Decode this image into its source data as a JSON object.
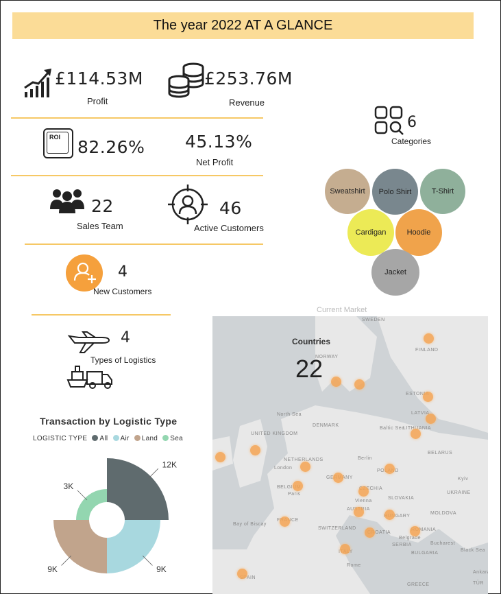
{
  "banner": {
    "title": "The year 2022 AT A GLANCE"
  },
  "kpis": {
    "profit": {
      "value": "£114.53M",
      "label": "Profit"
    },
    "revenue": {
      "value": "£253.76M",
      "label": "Revenue"
    },
    "roi": {
      "value": "82.26%",
      "icon_text": "ROI"
    },
    "net_profit": {
      "value": "45.13%",
      "label": "Net Profit"
    },
    "sales_team": {
      "value": "22",
      "label": "Sales Team"
    },
    "active_customers": {
      "value": "46",
      "label": "Active Customers"
    },
    "new_customers": {
      "value": "4",
      "label": "New Customers"
    },
    "logistics": {
      "value": "4",
      "label": "Types of Logistics"
    },
    "categories": {
      "value": "6",
      "label": "Categories"
    }
  },
  "category_bubbles": [
    {
      "label": "Sweatshirt",
      "color": "#c5ad90"
    },
    {
      "label": "Polo Shirt",
      "color": "#79878e"
    },
    {
      "label": "T-Shirt",
      "color": "#8fb09b"
    },
    {
      "label": "Cardigan",
      "color": "#ecea56"
    },
    {
      "label": "Hoodie",
      "color": "#f0a34b"
    },
    {
      "label": "Jacket",
      "color": "#a6a6a6"
    }
  ],
  "chart_data": {
    "type": "pie",
    "title": "Transaction by Logistic Type",
    "legend_title": "LOGISTIC TYPE",
    "legend_position": "top",
    "categories": [
      "All",
      "Air",
      "Land",
      "Sea"
    ],
    "values": [
      12000,
      9000,
      9000,
      3000
    ],
    "data_labels": [
      "12K",
      "9K",
      "9K",
      "3K"
    ],
    "colors": [
      "#5f6b6e",
      "#a8d8df",
      "#c1a48c",
      "#93d6b0"
    ]
  },
  "map": {
    "title": "Current Market",
    "countries_label": "Countries",
    "countries_value": "22",
    "place_labels": [
      "SWEDEN",
      "FINLAND",
      "NORWAY",
      "ESTONIA",
      "North Sea",
      "DENMARK",
      "Baltic Sea",
      "LATVIA",
      "LITHUANIA",
      "UNITED KINGDOM",
      "BELARUS",
      "NETHERLANDS",
      "Berlin",
      "London",
      "GERMANY",
      "POLAND",
      "BELGIUM",
      "Paris",
      "CZECHIA",
      "UKRAINE",
      "Kyiv",
      "SLOVAKIA",
      "Vienna",
      "AUSTRIA",
      "HUNGARY",
      "MOLDOVA",
      "FRANCE",
      "Bay of Biscay",
      "SWITZERLAND",
      "CROATIA",
      "ROMANIA",
      "Belgrade",
      "Bucharest",
      "SERBIA",
      "BULGARIA",
      "Black Sea",
      "ITALY",
      "Rome",
      "SPAIN",
      "GREECE",
      "Ankara",
      "TÜR"
    ]
  }
}
